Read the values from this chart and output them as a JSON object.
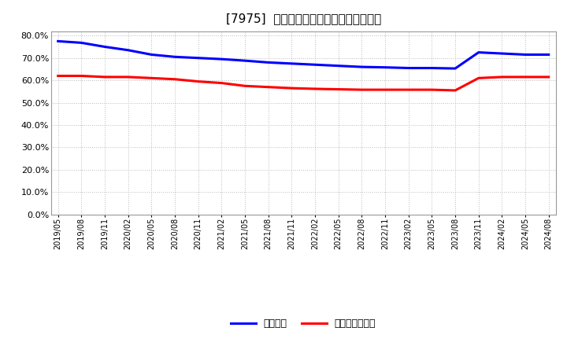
{
  "title": "[7975]  固定比率、固定長期適合率の推移",
  "x_labels": [
    "2019/05",
    "2019/08",
    "2019/11",
    "2020/02",
    "2020/05",
    "2020/08",
    "2020/11",
    "2021/02",
    "2021/05",
    "2021/08",
    "2021/11",
    "2022/02",
    "2022/05",
    "2022/08",
    "2022/11",
    "2023/02",
    "2023/05",
    "2023/08",
    "2023/11",
    "2024/02",
    "2024/05",
    "2024/08"
  ],
  "fixed_ratio": [
    77.5,
    76.8,
    75.0,
    73.5,
    71.5,
    70.5,
    70.0,
    69.5,
    68.8,
    68.0,
    67.5,
    67.0,
    66.5,
    66.0,
    65.8,
    65.5,
    65.5,
    65.3,
    72.5,
    72.0,
    71.5,
    71.5
  ],
  "fixed_long_ratio": [
    62.0,
    62.0,
    61.5,
    61.5,
    61.0,
    60.5,
    59.5,
    58.8,
    57.5,
    57.0,
    56.5,
    56.2,
    56.0,
    55.8,
    55.8,
    55.8,
    55.8,
    55.5,
    61.0,
    61.5,
    61.5,
    61.5
  ],
  "line1_color": "#0000ff",
  "line2_color": "#ff0000",
  "background_color": "#ffffff",
  "grid_color": "#aaaaaa",
  "ylim_max": 82,
  "yticks": [
    0,
    10,
    20,
    30,
    40,
    50,
    60,
    70,
    80
  ],
  "legend_label1": "固定比率",
  "legend_label2": "固定長期適合率"
}
